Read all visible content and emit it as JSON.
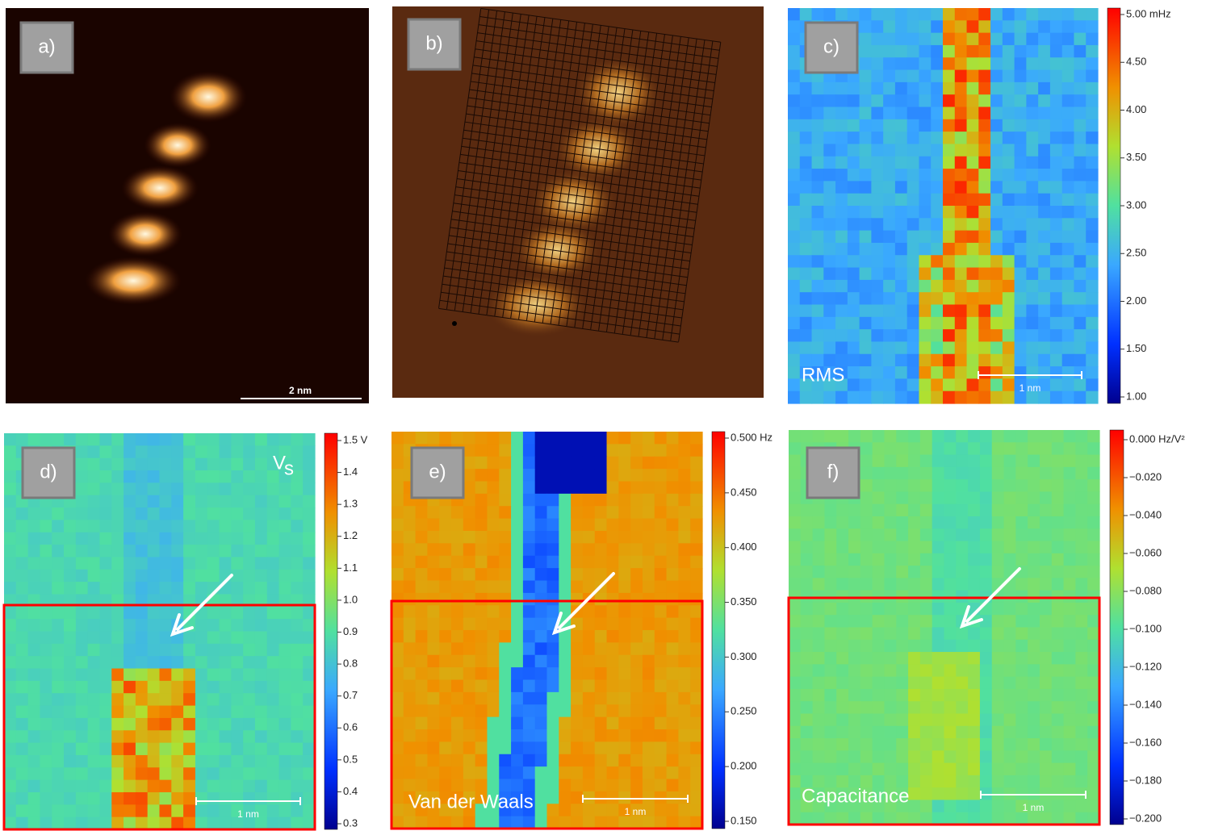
{
  "panels": [
    {
      "label": "a)",
      "scale_bar": "2 nm"
    },
    {
      "label": "b)"
    },
    {
      "label": "c)",
      "overlay": "RMS",
      "scale_bar": "1 nm",
      "colorbar": {
        "lim": [
          1,
          5
        ],
        "ticks": [
          {
            "value": 5,
            "label": "5.00 mHz"
          },
          {
            "value": 4.5,
            "label": "4.50"
          },
          {
            "value": 4,
            "label": "4.00"
          },
          {
            "value": 3.5,
            "label": "3.50"
          },
          {
            "value": 3,
            "label": "3.00"
          },
          {
            "value": 2.5,
            "label": "2.50"
          },
          {
            "value": 2,
            "label": "2.00"
          },
          {
            "value": 1.5,
            "label": "1.50"
          },
          {
            "value": 1,
            "label": "1.00"
          }
        ]
      }
    },
    {
      "label": "d)",
      "overlay": "V",
      "overlay_sub": "s",
      "scale_bar": "1 nm",
      "colorbar": {
        "lim": [
          0.3,
          1.5
        ],
        "ticks": [
          {
            "value": 1.5,
            "label": "1.5 V"
          },
          1.4,
          1.3,
          1.2,
          1.1,
          {
            "value": 1,
            "label": "1.0"
          },
          0.9,
          0.8,
          0.7,
          0.6,
          0.5,
          0.4,
          0.3
        ]
      }
    },
    {
      "label": "e)",
      "overlay": "Van der Waals",
      "scale_bar": "1 nm",
      "colorbar": {
        "lim": [
          0.15,
          0.5
        ],
        "ticks": [
          {
            "value": 0.5,
            "label": "0.500 Hz"
          },
          {
            "value": 0.45,
            "label": "0.450"
          },
          {
            "value": 0.4,
            "label": "0.400"
          },
          {
            "value": 0.35,
            "label": "0.350"
          },
          {
            "value": 0.3,
            "label": "0.300"
          },
          {
            "value": 0.25,
            "label": "0.250"
          },
          {
            "value": 0.2,
            "label": "0.200"
          },
          {
            "value": 0.15,
            "label": "0.150"
          }
        ]
      }
    },
    {
      "label": "f)",
      "overlay": "Capacitance",
      "scale_bar": "1 nm",
      "colorbar": {
        "lim": [
          -0.2,
          0
        ],
        "ticks": [
          {
            "value": 0,
            "label": "0.000 Hz/V²"
          },
          {
            "value": -0.02,
            "label": "−0.020"
          },
          {
            "value": -0.04,
            "label": "−0.040"
          },
          {
            "value": -0.06,
            "label": "−0.060"
          },
          {
            "value": -0.08,
            "label": "−0.080"
          },
          {
            "value": -0.1,
            "label": "−0.100"
          },
          {
            "value": -0.12,
            "label": "−0.120"
          },
          {
            "value": -0.14,
            "label": "−0.140"
          },
          {
            "value": -0.16,
            "label": "−0.160"
          },
          {
            "value": -0.18,
            "label": "−0.180"
          },
          {
            "value": -0.2,
            "label": "−0.200"
          }
        ]
      }
    }
  ]
}
